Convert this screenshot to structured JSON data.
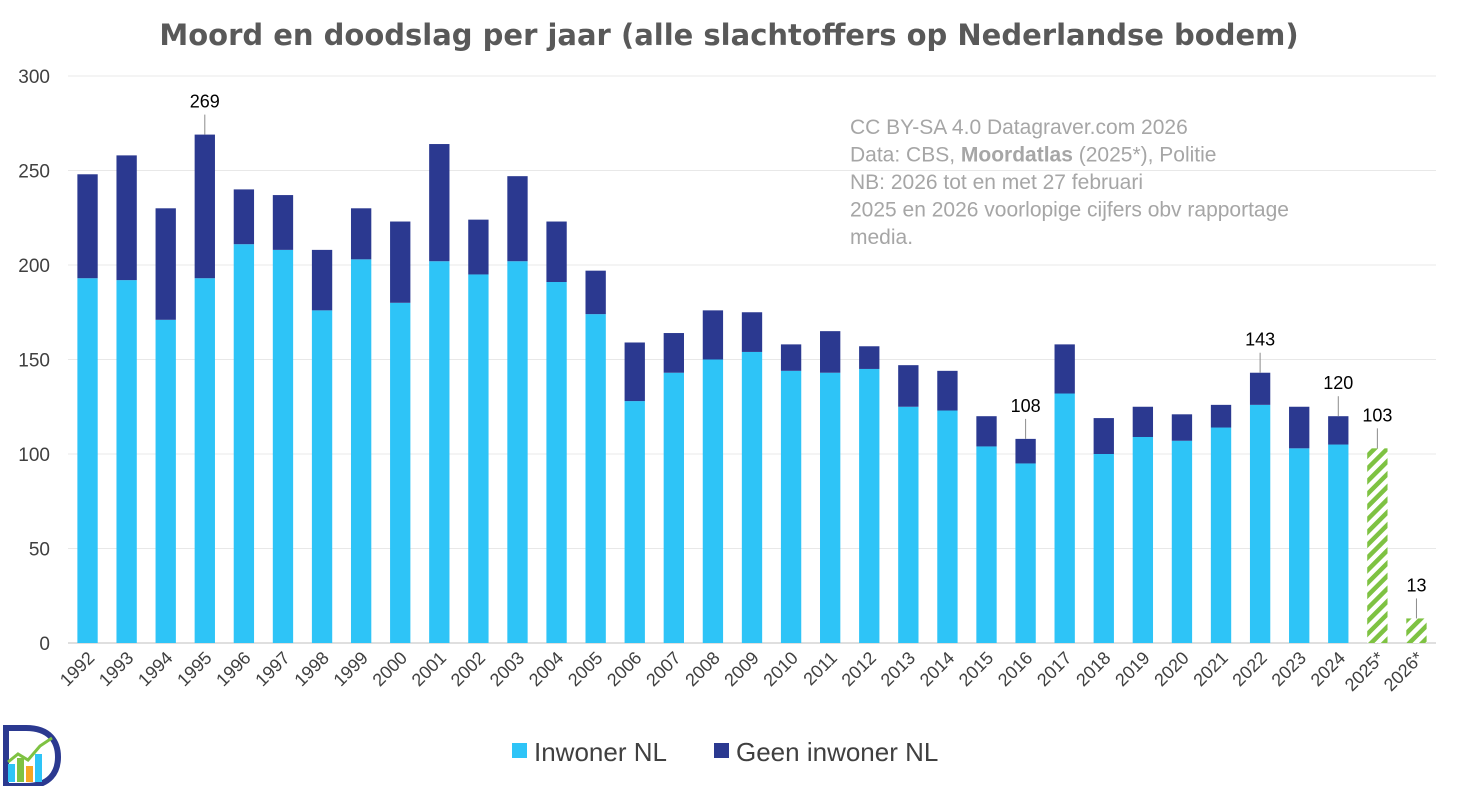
{
  "chart_data": {
    "type": "bar",
    "stacked": true,
    "title": "Moord en doodslag per jaar (alle slachtoffers op Nederlandse bodem)",
    "xlabel": "",
    "ylabel": "",
    "ylim": [
      0,
      300
    ],
    "yticks": [
      0,
      50,
      100,
      150,
      200,
      250,
      300
    ],
    "grid": true,
    "legend_position": "bottom",
    "categories": [
      "1992",
      "1993",
      "1994",
      "1995",
      "1996",
      "1997",
      "1998",
      "1999",
      "2000",
      "2001",
      "2002",
      "2003",
      "2004",
      "2005",
      "2006",
      "2007",
      "2008",
      "2009",
      "2010",
      "2011",
      "2012",
      "2013",
      "2014",
      "2015",
      "2016",
      "2017",
      "2018",
      "2019",
      "2020",
      "2021",
      "2022",
      "2023",
      "2024",
      "2025*",
      "2026*"
    ],
    "series": [
      {
        "name": "Inwoner NL",
        "color": "#2ec4f7",
        "values": [
          193,
          192,
          171,
          193,
          211,
          208,
          176,
          203,
          180,
          202,
          195,
          202,
          191,
          174,
          128,
          143,
          150,
          154,
          144,
          143,
          145,
          125,
          123,
          104,
          95,
          132,
          100,
          109,
          107,
          114,
          126,
          103,
          105,
          null,
          null
        ]
      },
      {
        "name": "Geen inwoner NL",
        "color": "#2b3990",
        "values": [
          55,
          66,
          59,
          76,
          29,
          29,
          32,
          27,
          43,
          62,
          29,
          45,
          32,
          23,
          31,
          21,
          26,
          21,
          14,
          22,
          12,
          22,
          21,
          16,
          13,
          26,
          19,
          16,
          14,
          12,
          17,
          22,
          15,
          null,
          null
        ]
      },
      {
        "name": "",
        "color": "#7ec242",
        "pattern": "hatched",
        "values": [
          null,
          null,
          null,
          null,
          null,
          null,
          null,
          null,
          null,
          null,
          null,
          null,
          null,
          null,
          null,
          null,
          null,
          null,
          null,
          null,
          null,
          null,
          null,
          null,
          null,
          null,
          null,
          null,
          null,
          null,
          null,
          null,
          null,
          103,
          13
        ]
      }
    ],
    "data_labels": [
      {
        "category": "1995",
        "text": "269"
      },
      {
        "category": "2016",
        "text": "108"
      },
      {
        "category": "2022",
        "text": "143"
      },
      {
        "category": "2024",
        "text": "120"
      },
      {
        "category": "2025*",
        "text": "103"
      },
      {
        "category": "2026*",
        "text": "13"
      }
    ],
    "annotation": {
      "lines": [
        [
          {
            "text": "CC BY-SA 4.0 Datagraver.com 2026",
            "bold": false
          }
        ],
        [
          {
            "text": "Data: CBS, ",
            "bold": false
          },
          {
            "text": "Moordatlas",
            "bold": true
          },
          {
            "text": " (2025*), Politie",
            "bold": false
          }
        ],
        [
          {
            "text": "NB: 2026 tot en met 27 februari",
            "bold": false
          }
        ],
        [
          {
            "text": "2025 en 2026 voorlopige cijfers obv rapportage",
            "bold": false
          }
        ],
        [
          {
            "text": "media.",
            "bold": false
          }
        ]
      ]
    }
  },
  "logo": {
    "text": "D",
    "icon": "datagraver-logo-icon"
  }
}
